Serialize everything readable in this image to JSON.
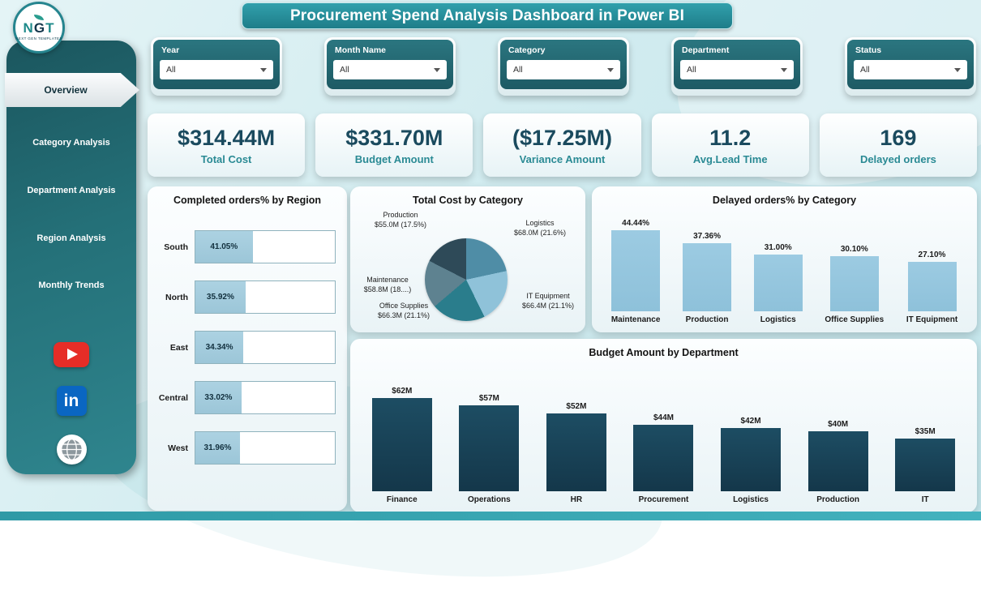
{
  "logo": {
    "text_n": "N",
    "text_g": "G",
    "text_t": "T",
    "subtext": "NEXT GEN TEMPLATES"
  },
  "title": "Procurement Spend Analysis Dashboard in Power BI",
  "sidebar": {
    "items": [
      {
        "label": "Overview",
        "active": true
      },
      {
        "label": "Category Analysis",
        "active": false
      },
      {
        "label": "Department Analysis",
        "active": false
      },
      {
        "label": "Region Analysis",
        "active": false
      },
      {
        "label": "Monthly Trends",
        "active": false
      }
    ],
    "social": {
      "linkedin_text": "in"
    }
  },
  "filters": [
    {
      "label": "Year",
      "value": "All"
    },
    {
      "label": "Month Name",
      "value": "All"
    },
    {
      "label": "Category",
      "value": "All"
    },
    {
      "label": "Department",
      "value": "All"
    },
    {
      "label": "Status",
      "value": "All"
    }
  ],
  "kpis": [
    {
      "value": "$314.44M",
      "label": "Total Cost"
    },
    {
      "value": "$331.70M",
      "label": "Budget Amount"
    },
    {
      "value": "($17.25M)",
      "label": "Variance Amount"
    },
    {
      "value": "11.2",
      "label": "Avg.Lead Time"
    },
    {
      "value": "169",
      "label": "Delayed orders"
    }
  ],
  "colors": {
    "accent_teal": "#2a8a94",
    "dark_teal": "#1d5a64",
    "kpi_text": "#1a4a5e",
    "light_blue_bar": "#92c5de",
    "dark_column": "#17384b"
  },
  "chart_data": [
    {
      "type": "bar",
      "orientation": "horizontal",
      "title": "Completed orders% by Region",
      "categories": [
        "South",
        "North",
        "East",
        "Central",
        "West"
      ],
      "values": [
        41.05,
        35.92,
        34.34,
        33.02,
        31.96
      ],
      "value_labels": [
        "41.05%",
        "35.92%",
        "34.34%",
        "33.02%",
        "31.96%"
      ],
      "xlim": [
        0,
        100
      ],
      "grid": false
    },
    {
      "type": "pie",
      "title": "Total Cost by Category",
      "slices": [
        {
          "label": "Logistics",
          "value_text": "$68.0M (21.6%)",
          "value_m": 68.0,
          "pct": 21.6,
          "color": "#4f8da6"
        },
        {
          "label": "IT Equipment",
          "value_text": "$66.4M (21.1%)",
          "value_m": 66.4,
          "pct": 21.1,
          "color": "#8fc2d9"
        },
        {
          "label": "Office Supplies",
          "value_text": "$66.3M (21.1%)",
          "value_m": 66.3,
          "pct": 21.1,
          "color": "#2a7d8c"
        },
        {
          "label": "Maintenance",
          "value_text": "$58.8M (18....)",
          "value_m": 58.8,
          "pct": 18.7,
          "color": "#5e8290"
        },
        {
          "label": "Production",
          "value_text": "$55.0M (17.5%)",
          "value_m": 55.0,
          "pct": 17.5,
          "color": "#2e4a58"
        }
      ]
    },
    {
      "type": "bar",
      "title": "Delayed orders% by Category",
      "categories": [
        "Maintenance",
        "Production",
        "Logistics",
        "Office Supplies",
        "IT Equipment"
      ],
      "values": [
        44.44,
        37.36,
        31.0,
        30.1,
        27.1
      ],
      "value_labels": [
        "44.44%",
        "37.36%",
        "31.00%",
        "30.10%",
        "27.10%"
      ],
      "ylim": [
        0,
        50
      ],
      "grid": false
    },
    {
      "type": "bar",
      "title": "Budget Amount by Department",
      "categories": [
        "Finance",
        "Operations",
        "HR",
        "Procurement",
        "Logistics",
        "Production",
        "IT"
      ],
      "values": [
        62,
        57,
        52,
        44,
        42,
        40,
        35
      ],
      "value_labels": [
        "$62M",
        "$57M",
        "$52M",
        "$44M",
        "$42M",
        "$40M",
        "$35M"
      ],
      "ylim": [
        0,
        70
      ],
      "grid": false
    }
  ]
}
